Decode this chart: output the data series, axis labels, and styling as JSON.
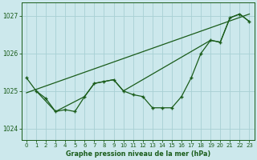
{
  "title": "Graphe pression niveau de la mer (hPa)",
  "bg_color": "#cce8ec",
  "grid_color": "#a8d0d4",
  "line_color": "#1a5c1a",
  "marker_color": "#1a5c1a",
  "xlim": [
    -0.5,
    23.5
  ],
  "ylim": [
    1023.7,
    1027.35
  ],
  "yticks": [
    1024,
    1025,
    1026,
    1027
  ],
  "xticks": [
    0,
    1,
    2,
    3,
    4,
    5,
    6,
    7,
    8,
    9,
    10,
    11,
    12,
    13,
    14,
    15,
    16,
    17,
    18,
    19,
    20,
    21,
    22,
    23
  ],
  "main_series_x": [
    0,
    1,
    2,
    3,
    4,
    5,
    6,
    7,
    8,
    9,
    10,
    11,
    12,
    13,
    14,
    15,
    16,
    17,
    18,
    19,
    20,
    21,
    22,
    23
  ],
  "main_series_y": [
    1025.35,
    1025.0,
    1024.8,
    1024.45,
    1024.5,
    1024.45,
    1024.85,
    1025.2,
    1025.25,
    1025.3,
    1025.0,
    1024.9,
    1024.85,
    1024.55,
    1024.55,
    1024.55,
    1024.85,
    1025.35,
    1026.0,
    1026.35,
    1026.3,
    1026.95,
    1027.05,
    1026.85
  ],
  "line2_x": [
    1,
    3,
    6,
    7,
    8,
    9,
    10,
    19,
    20,
    21,
    22,
    23
  ],
  "line2_y": [
    1025.0,
    1024.45,
    1024.85,
    1025.2,
    1025.25,
    1025.3,
    1025.0,
    1026.35,
    1026.3,
    1026.95,
    1027.05,
    1026.85
  ],
  "trend_x": [
    0,
    23
  ],
  "trend_y": [
    1024.95,
    1027.05
  ]
}
